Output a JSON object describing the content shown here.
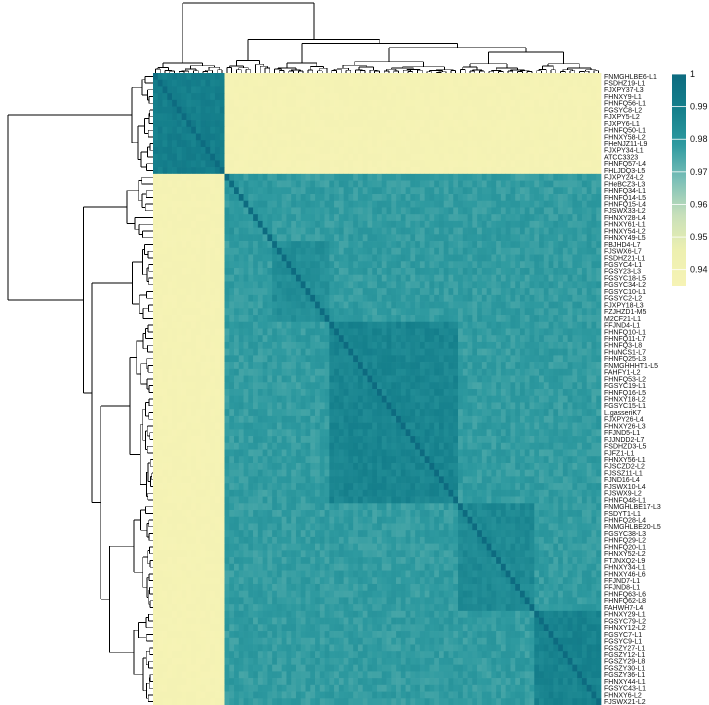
{
  "chart_data": {
    "type": "heatmap",
    "title": "",
    "xlabel": "",
    "ylabel": "",
    "row_labels": [
      "FNMGHLBE6-L1",
      "FSDHZ19-L1",
      "FJXPY37-L3",
      "FHNXY9-L1",
      "FHNFQ56-L1",
      "FGSYC8-L2",
      "FJXPY5-L2",
      "FJXPY6-L1",
      "FHNFQ50-L1",
      "FHNXY58-L2",
      "FHeNJZ11-L9",
      "FJXPY34-L1",
      "ATCC3323",
      "FHNFQ57-L4",
      "FHLJDQ3-L5",
      "FJXPY24-L2",
      "FHeBCZ3-L3",
      "FHNFQ34-L1",
      "FHNFQ14-L5",
      "FHNFQ15-L4",
      "FJSWX33-L2",
      "FHNXY28-L4",
      "FHNXY61-L1",
      "FHNXY54-L2",
      "FHNXY49-L5",
      "FBJHD4-L7",
      "FJSWX6-L7",
      "FSDHZ21-L1",
      "FGSYC4-L1",
      "FGSY23-L3",
      "FGSYC18-L5",
      "FGSYC34-L2",
      "FGSYC10-L1",
      "FGSYC2-L2",
      "FJXPY18-L3",
      "FZJHZD1-M5",
      "M2CF21-L1",
      "FFJND4-L1",
      "FHNFQ10-L1",
      "FHNFQ11-L7",
      "FHNFQ3-L8",
      "FHuNCS1-L7",
      "FHNFQ25-L3",
      "FNMGHHHT1-L5",
      "FAHFY1-L2",
      "FHNFQ53-L2",
      "FGSYC19-L1",
      "FHNFQ16-L5",
      "FHNXY18-L2",
      "FGSYC15-L1",
      "L.gasseriK7",
      "FJXPY26-L4",
      "FHNXY26-L3",
      "FFJND5-L1",
      "FJJNDD2-L7",
      "FSDHZD3-L5",
      "FJFZ1-L1",
      "FHNXY56-L1",
      "FJSCZD2-L2",
      "FJSSZ11-L1",
      "FJND16-L4",
      "FJSWX10-L4",
      "FJSWX9-L2",
      "FHNFQ48-L1",
      "FNMGHLBE17-L3",
      "FSDYT1-L1",
      "FHNFQ28-L4",
      "FNMGHLBE20-L5",
      "FGSYC38-L3",
      "FHNFQ29-L2",
      "FHNFQ20-L1",
      "FHNXY52-L2",
      "FTJNXQ2-L9",
      "FHNXY34-L1",
      "FHNXY46-L6",
      "FFJND7-L1",
      "FFJND8-L1",
      "FHNFQ63-L6",
      "FHNFQ62-L8",
      "FAHWH7-L4",
      "FHNXY29-L1",
      "FGSYC79-L2",
      "FHNXY12-L2",
      "FGSYC7-L1",
      "FGSYC9-L1",
      "FGSZY27-L1",
      "FGSZY12-L1",
      "FGSZY29-L8",
      "FGSZY30-L1",
      "FGSZY36-L1",
      "FHNXY44-L1",
      "FGSYC43-L1",
      "FHNXY6-L2",
      "FJSWX21-L2"
    ],
    "clusters": [
      {
        "rows": [
          0,
          14
        ],
        "within": 0.99
      },
      {
        "rows": [
          15,
          24
        ],
        "within": 0.979
      },
      {
        "rows": [
          25,
          36
        ],
        "within": 0.983
      },
      {
        "rows": [
          37,
          63
        ],
        "within": 0.987
      },
      {
        "rows": [
          64,
          79
        ],
        "within": 0.985
      },
      {
        "rows": [
          80,
          93
        ],
        "within": 0.988
      }
    ],
    "between_top_and_rest": 0.935,
    "between_lower_clusters": 0.978,
    "value_range": [
      0.935,
      1.0
    ],
    "legend": {
      "position": "top-right",
      "ticks": [
        "1",
        "0.99",
        "0.98",
        "0.97",
        "0.96",
        "0.95",
        "0.94"
      ],
      "tick_values": [
        1.0,
        0.99,
        0.98,
        0.97,
        0.96,
        0.95,
        0.94
      ],
      "colors": [
        "#f6f3b5",
        "#edf0b0",
        "#c8e0ba",
        "#7cc0b8",
        "#2e9aa0",
        "#15808c",
        "#0d6b80"
      ]
    },
    "grid": false
  }
}
